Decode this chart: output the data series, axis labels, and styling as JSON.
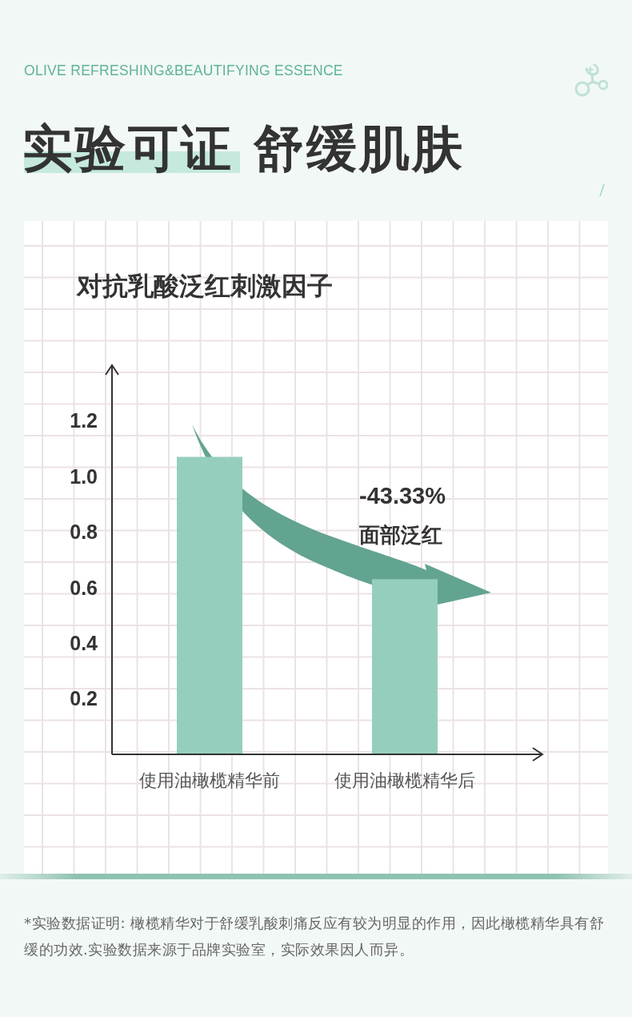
{
  "chart_data": {
    "type": "bar",
    "title": "实验可证 舒缓肌肤",
    "subtitle": "对抗乳酸泛红刺激因子",
    "categories": [
      "使用油橄榄精华前",
      "使用油橄榄精华后"
    ],
    "values": [
      1.07,
      0.63
    ],
    "color": "#96cebd",
    "ylim": [
      0,
      1.4
    ],
    "yticks": [
      0.2,
      0.4,
      0.6,
      0.8,
      {
        "value": 1,
        "label": "1.0"
      },
      1.2
    ],
    "annotations": [
      "OLIVE REFRESHING&BEAUTIFYING ESSENCE",
      "-43.33%",
      "面部泛红",
      "*实验数据证明: 橄榄精华对于舒缓乳酸刺痛反应有较为明显的作用，因此橄榄精华具有舒缓的功效.实验数据来源于品牌实验室，实际效果因人而异。"
    ]
  }
}
